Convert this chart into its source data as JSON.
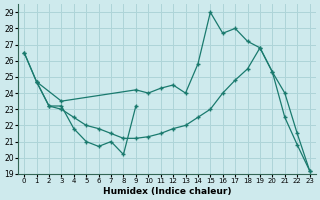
{
  "xlabel": "Humidex (Indice chaleur)",
  "bg_color": "#ceeaed",
  "grid_color": "#aed4d8",
  "line_color": "#1a7a6e",
  "xlim": [
    -0.5,
    23.5
  ],
  "ylim": [
    19,
    29.5
  ],
  "yticks": [
    19,
    20,
    21,
    22,
    23,
    24,
    25,
    26,
    27,
    28,
    29
  ],
  "xticks": [
    0,
    1,
    2,
    3,
    4,
    5,
    6,
    7,
    8,
    9,
    10,
    11,
    12,
    13,
    14,
    15,
    16,
    17,
    18,
    19,
    20,
    21,
    22,
    23
  ],
  "line1_x": [
    0,
    1,
    2,
    3,
    4,
    5,
    6,
    7,
    8,
    9
  ],
  "line1_y": [
    26.5,
    24.7,
    23.2,
    23.2,
    21.8,
    21.0,
    20.7,
    21.0,
    20.2,
    23.2
  ],
  "line2_x": [
    0,
    1,
    3,
    9,
    10,
    11,
    12,
    13,
    14,
    15,
    16,
    17,
    18,
    19,
    20,
    21,
    22,
    23
  ],
  "line2_y": [
    26.5,
    24.7,
    23.5,
    24.2,
    24.0,
    24.3,
    24.5,
    24.0,
    25.8,
    29.0,
    27.7,
    28.0,
    27.2,
    26.8,
    25.3,
    22.5,
    20.8,
    19.2
  ],
  "line3_x": [
    1,
    2,
    3,
    4,
    5,
    6,
    7,
    8,
    9,
    10,
    11,
    12,
    13,
    14,
    15,
    16,
    17,
    18,
    19,
    20,
    21,
    22,
    23
  ],
  "line3_y": [
    24.7,
    23.2,
    23.0,
    22.5,
    22.0,
    21.8,
    21.5,
    21.2,
    21.2,
    21.3,
    21.5,
    21.8,
    22.0,
    22.5,
    23.0,
    24.0,
    24.8,
    25.5,
    26.8,
    25.3,
    24.0,
    21.5,
    19.2
  ]
}
